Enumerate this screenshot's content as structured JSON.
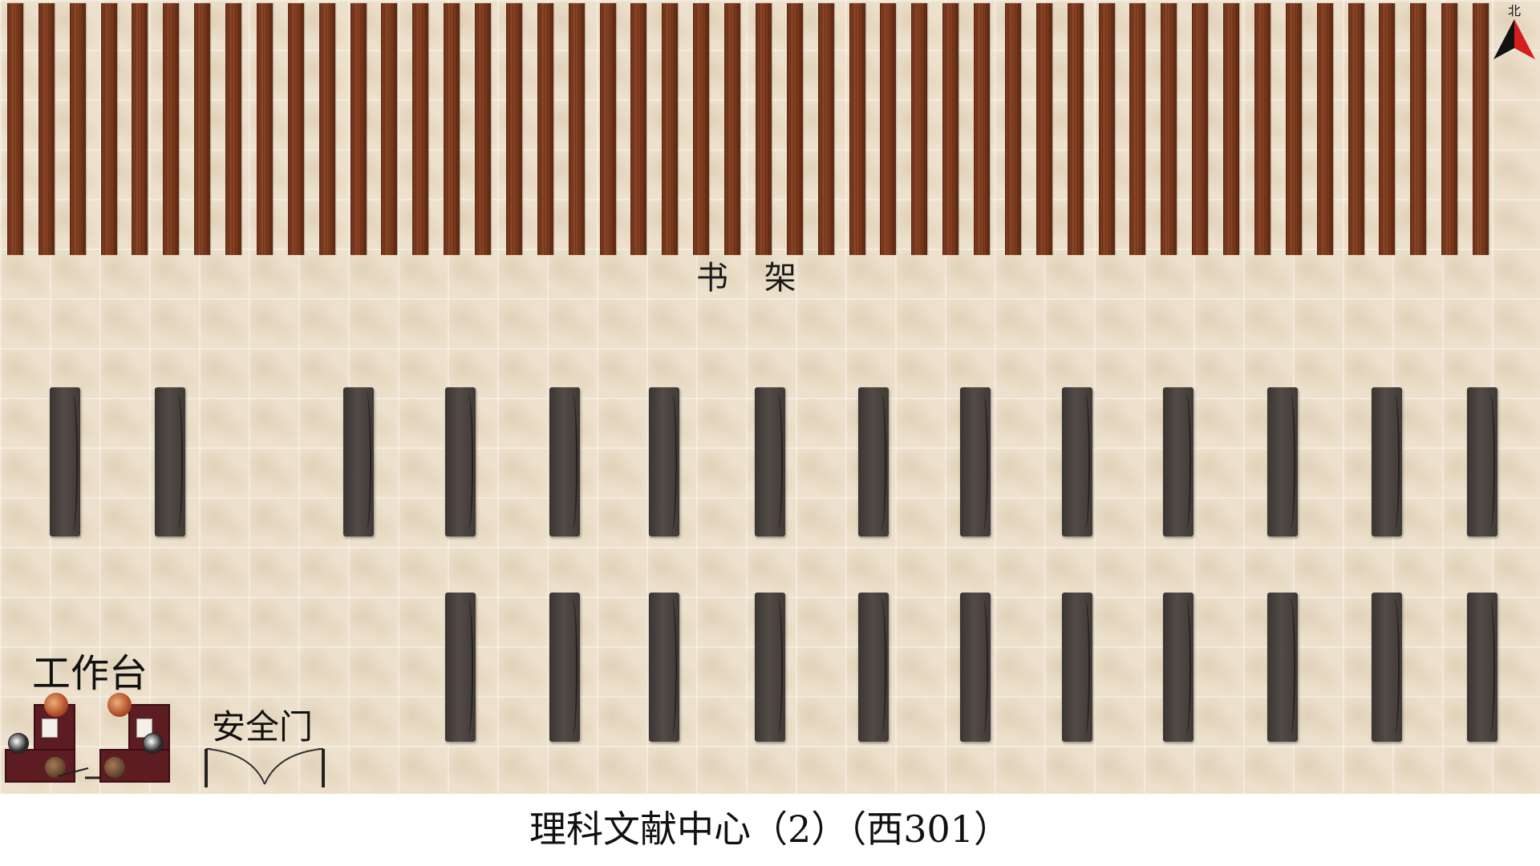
{
  "labels": {
    "shelves": "书 架",
    "workstation": "工作台",
    "safety_door": "安全门",
    "north": "北"
  },
  "title": "理科文献中心（2）（西301）",
  "icons": {
    "compass": "north-arrow-icon",
    "person": "person-icon",
    "door": "double-door-icon"
  },
  "colors": {
    "shelf_wood": "#7b3a1e",
    "table": "#454040",
    "desk": "#5d1b22",
    "floor": "#ede1cd",
    "compass_arrow": "#d41e1e"
  },
  "counts": {
    "shelves": 48,
    "tables_upper_row": 14,
    "tables_lower_row": 11
  }
}
